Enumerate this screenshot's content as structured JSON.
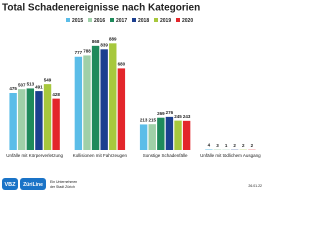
{
  "chart_data": {
    "type": "bar",
    "title": "Total Schadenereignisse nach Kategorien",
    "categories": [
      "Unfälle mit Körperverletzung",
      "Kollisionen mit Fahrzeugen",
      "Sonstige Schadenfälle",
      "Unfälle mit tödlichem Ausgang"
    ],
    "series": [
      {
        "name": "2015",
        "color": "#5bbde8",
        "values": [
          475,
          777,
          213,
          4
        ]
      },
      {
        "name": "2016",
        "color": "#9fd0a8",
        "values": [
          507,
          788,
          215,
          3
        ]
      },
      {
        "name": "2017",
        "color": "#1f8a5b",
        "values": [
          513,
          868,
          269,
          1
        ]
      },
      {
        "name": "2018",
        "color": "#1c3f8f",
        "values": [
          491,
          839,
          276,
          2
        ]
      },
      {
        "name": "2019",
        "color": "#a7c83d",
        "values": [
          549,
          889,
          245,
          2
        ]
      },
      {
        "name": "2020",
        "color": "#e3262b",
        "values": [
          428,
          680,
          243,
          2
        ]
      }
    ],
    "ylim": [
      0,
      1000
    ]
  },
  "footer": {
    "logo1": "VBZ",
    "logo2": "ZüriLine",
    "note": [
      "Ein Unternehmen",
      "der Stadt Zürich"
    ],
    "date": "26.01.22"
  }
}
